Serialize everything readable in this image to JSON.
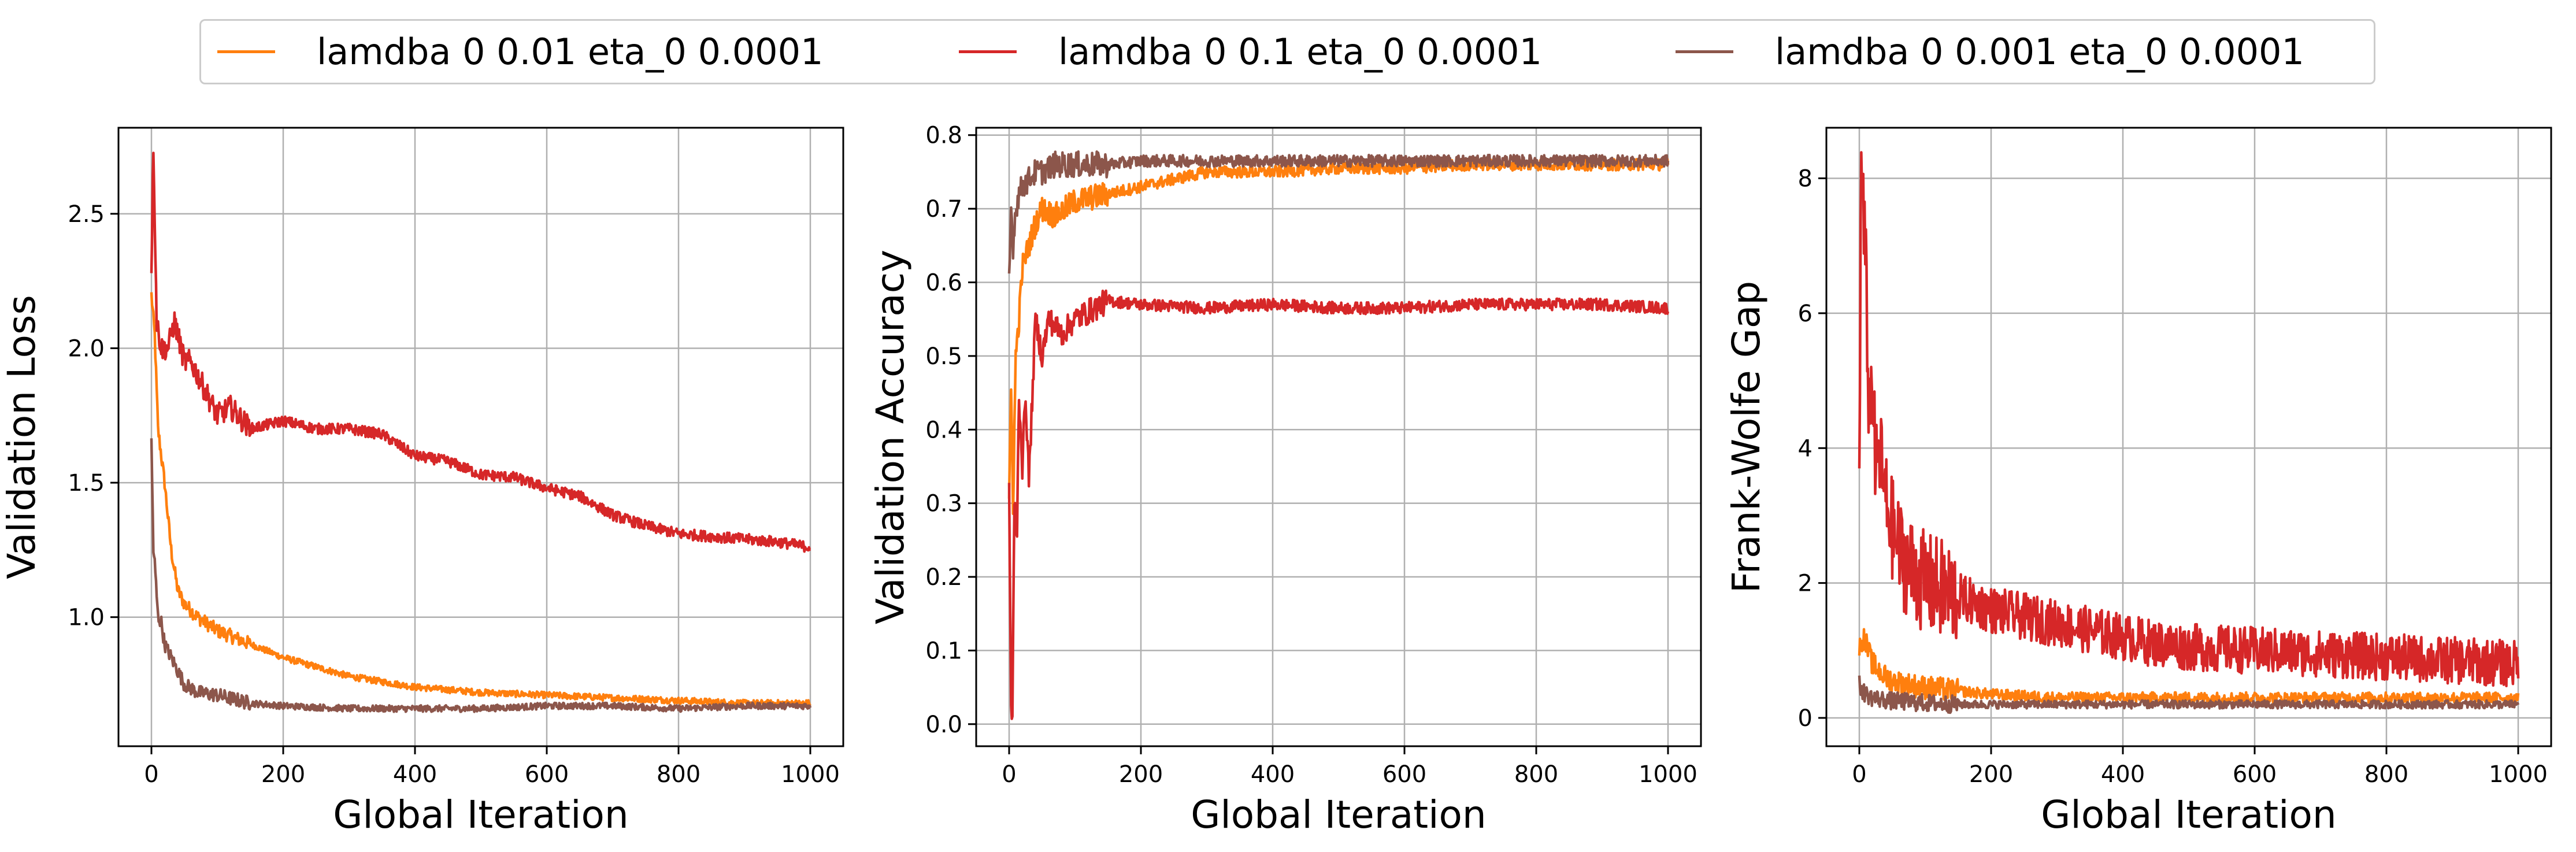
{
  "legend": {
    "entries": [
      {
        "label": "lamdba 0 0.01 eta_0 0.0001",
        "color": "#ff7f0e"
      },
      {
        "label": "lamdba 0 0.1 eta_0 0.0001",
        "color": "#d62728"
      },
      {
        "label": "lamdba 0 0.001 eta_0 0.0001",
        "color": "#8c564b"
      }
    ]
  },
  "chart_data": [
    {
      "type": "line",
      "xlabel": "Global Iteration",
      "ylabel": "Validation Loss",
      "xlim": [
        -50,
        1050
      ],
      "ylim": [
        0.52,
        2.82
      ],
      "xticks": [
        0,
        200,
        400,
        600,
        800,
        1000
      ],
      "yticks": [
        1.0,
        1.5,
        2.0,
        2.5
      ],
      "ytick_labels": [
        "1.0",
        "1.5",
        "2.0",
        "2.5"
      ],
      "grid": true,
      "noise": [
        0.012,
        0.02,
        0.012
      ],
      "series": [
        {
          "name": "lamdba 0 0.01 eta_0 0.0001",
          "color": "#ff7f0e",
          "x": [
            0,
            5,
            10,
            20,
            30,
            40,
            50,
            70,
            100,
            150,
            200,
            300,
            400,
            500,
            600,
            700,
            800,
            900,
            1000
          ],
          "y": [
            2.2,
            2.05,
            1.7,
            1.5,
            1.25,
            1.1,
            1.05,
            1.0,
            0.95,
            0.9,
            0.85,
            0.78,
            0.74,
            0.72,
            0.71,
            0.7,
            0.69,
            0.68,
            0.68
          ]
        },
        {
          "name": "lamdba 0 0.1 eta_0 0.0001",
          "color": "#d62728",
          "x": [
            0,
            3,
            8,
            15,
            25,
            35,
            50,
            60,
            80,
            100,
            120,
            150,
            200,
            250,
            300,
            350,
            400,
            450,
            500,
            550,
            600,
            650,
            700,
            750,
            800,
            850,
            900,
            950,
            1000
          ],
          "y": [
            2.3,
            2.76,
            2.1,
            2.0,
            2.0,
            2.1,
            1.95,
            1.95,
            1.85,
            1.75,
            1.78,
            1.7,
            1.73,
            1.7,
            1.7,
            1.68,
            1.6,
            1.58,
            1.53,
            1.52,
            1.48,
            1.45,
            1.38,
            1.34,
            1.31,
            1.3,
            1.29,
            1.28,
            1.26
          ]
        },
        {
          "name": "lamdba 0 0.001 eta_0 0.0001",
          "color": "#8c564b",
          "x": [
            0,
            3,
            5,
            10,
            15,
            20,
            30,
            40,
            50,
            70,
            100,
            150,
            200,
            300,
            400,
            500,
            600,
            700,
            800,
            900,
            1000
          ],
          "y": [
            1.65,
            1.25,
            1.2,
            1.0,
            0.98,
            0.9,
            0.85,
            0.8,
            0.75,
            0.72,
            0.71,
            0.68,
            0.67,
            0.66,
            0.66,
            0.66,
            0.67,
            0.67,
            0.66,
            0.67,
            0.67
          ]
        }
      ]
    },
    {
      "type": "line",
      "xlabel": "Global Iteration",
      "ylabel": "Validation Accuracy",
      "xlim": [
        -50,
        1050
      ],
      "ylim": [
        -0.03,
        0.81
      ],
      "xticks": [
        0,
        200,
        400,
        600,
        800,
        1000
      ],
      "yticks": [
        0.0,
        0.1,
        0.2,
        0.3,
        0.4,
        0.5,
        0.6,
        0.7,
        0.8
      ],
      "ytick_labels": [
        "0.0",
        "0.1",
        "0.2",
        "0.3",
        "0.4",
        "0.5",
        "0.6",
        "0.7",
        "0.8"
      ],
      "grid": true,
      "noise": [
        0.008,
        0.008,
        0.008
      ],
      "series": [
        {
          "name": "lamdba 0 0.01 eta_0 0.0001",
          "color": "#ff7f0e",
          "x": [
            0,
            3,
            6,
            10,
            15,
            20,
            30,
            40,
            50,
            70,
            100,
            150,
            200,
            300,
            400,
            500,
            600,
            700,
            800,
            900,
            1000
          ],
          "y": [
            0.3,
            0.45,
            0.3,
            0.5,
            0.55,
            0.62,
            0.65,
            0.68,
            0.7,
            0.69,
            0.71,
            0.72,
            0.73,
            0.75,
            0.75,
            0.755,
            0.755,
            0.76,
            0.76,
            0.76,
            0.76
          ]
        },
        {
          "name": "lamdba 0 0.1 eta_0 0.0001",
          "color": "#d62728",
          "x": [
            0,
            3,
            5,
            8,
            12,
            15,
            20,
            25,
            30,
            40,
            50,
            60,
            80,
            100,
            150,
            200,
            300,
            400,
            500,
            600,
            700,
            800,
            900,
            1000
          ],
          "y": [
            0.32,
            0.02,
            0.01,
            0.3,
            0.26,
            0.45,
            0.35,
            0.45,
            0.33,
            0.55,
            0.5,
            0.55,
            0.53,
            0.55,
            0.575,
            0.57,
            0.565,
            0.57,
            0.565,
            0.565,
            0.57,
            0.57,
            0.57,
            0.565
          ]
        },
        {
          "name": "lamdba 0 0.001 eta_0 0.0001",
          "color": "#8c564b",
          "x": [
            0,
            3,
            6,
            10,
            15,
            20,
            30,
            40,
            50,
            70,
            100,
            150,
            200,
            300,
            400,
            500,
            600,
            700,
            800,
            900,
            1000
          ],
          "y": [
            0.6,
            0.7,
            0.65,
            0.7,
            0.72,
            0.73,
            0.74,
            0.75,
            0.75,
            0.76,
            0.76,
            0.76,
            0.765,
            0.765,
            0.765,
            0.765,
            0.765,
            0.765,
            0.765,
            0.765,
            0.765
          ]
        }
      ]
    },
    {
      "type": "line",
      "xlabel": "Global Iteration",
      "ylabel": "Frank-Wolfe Gap",
      "xlim": [
        -50,
        1050
      ],
      "ylim": [
        -0.42,
        8.75
      ],
      "xticks": [
        0,
        200,
        400,
        600,
        800,
        1000
      ],
      "yticks": [
        0,
        2,
        4,
        6,
        8
      ],
      "ytick_labels": [
        "0",
        "2",
        "4",
        "6",
        "8"
      ],
      "grid": true,
      "noise": [
        0.08,
        0.35,
        0.06
      ],
      "series": [
        {
          "name": "lamdba 0 0.01 eta_0 0.0001",
          "color": "#ff7f0e",
          "x": [
            0,
            5,
            10,
            20,
            30,
            40,
            50,
            70,
            100,
            150,
            200,
            300,
            400,
            500,
            600,
            700,
            800,
            900,
            1000
          ],
          "y": [
            1.0,
            1.2,
            1.1,
            0.8,
            0.7,
            0.6,
            0.55,
            0.5,
            0.45,
            0.4,
            0.35,
            0.3,
            0.3,
            0.3,
            0.3,
            0.3,
            0.3,
            0.3,
            0.3
          ]
        },
        {
          "name": "lamdba 0 0.1 eta_0 0.0001",
          "color": "#d62728",
          "x": [
            0,
            3,
            6,
            10,
            15,
            20,
            25,
            30,
            40,
            50,
            60,
            70,
            80,
            100,
            150,
            200,
            250,
            300,
            350,
            400,
            450,
            500,
            600,
            700,
            800,
            900,
            1000
          ],
          "y": [
            4.0,
            8.3,
            7.5,
            6.5,
            4.5,
            5.0,
            3.5,
            4.0,
            3.2,
            2.8,
            2.5,
            2.3,
            2.2,
            2.0,
            1.8,
            1.6,
            1.5,
            1.4,
            1.3,
            1.2,
            1.1,
            1.05,
            1.0,
            0.95,
            0.9,
            0.85,
            0.8
          ]
        },
        {
          "name": "lamdba 0 0.001 eta_0 0.0001",
          "color": "#8c564b",
          "x": [
            0,
            5,
            10,
            20,
            30,
            50,
            70,
            100,
            150,
            200,
            300,
            400,
            500,
            600,
            700,
            800,
            900,
            1000
          ],
          "y": [
            0.5,
            0.4,
            0.35,
            0.3,
            0.28,
            0.25,
            0.24,
            0.22,
            0.2,
            0.2,
            0.2,
            0.2,
            0.2,
            0.2,
            0.2,
            0.2,
            0.2,
            0.2
          ]
        }
      ]
    }
  ]
}
